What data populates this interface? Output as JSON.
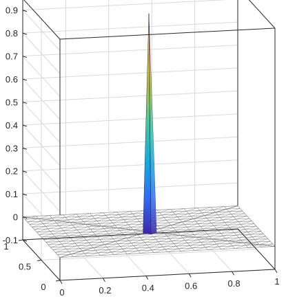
{
  "chart_data": {
    "type": "surface",
    "title": "",
    "xlabel": "",
    "ylabel": "",
    "zlabel": "",
    "xlim": [
      0,
      1
    ],
    "ylim": [
      0,
      1
    ],
    "zlim": [
      -0.1,
      0.9
    ],
    "grid": true,
    "box": true,
    "x_ticks": [
      "0",
      "0.2",
      "0.4",
      "0.6",
      "0.8",
      "1"
    ],
    "y_ticks": [
      "0",
      "0.5",
      "1"
    ],
    "z_ticks": [
      "-0.1",
      "0",
      "0.1",
      "0.2",
      "0.3",
      "0.4",
      "0.5",
      "0.6",
      "0.7",
      "0.8",
      "0.9"
    ],
    "surface": {
      "base_value": 0,
      "mesh_divisions": 16,
      "peak": {
        "x": 0.5,
        "y": 0.5,
        "z": 0.95
      },
      "colormap": "parula"
    }
  },
  "colors": {
    "axis": "#262626",
    "grid": "#d9d9d9",
    "mesh": "#808080",
    "face": "#ffffff",
    "colormap": [
      "#3e26a8",
      "#2e6ff5",
      "#13aed8",
      "#3fcb97",
      "#b3c52c",
      "#fdbb39",
      "#f9fb15"
    ]
  }
}
